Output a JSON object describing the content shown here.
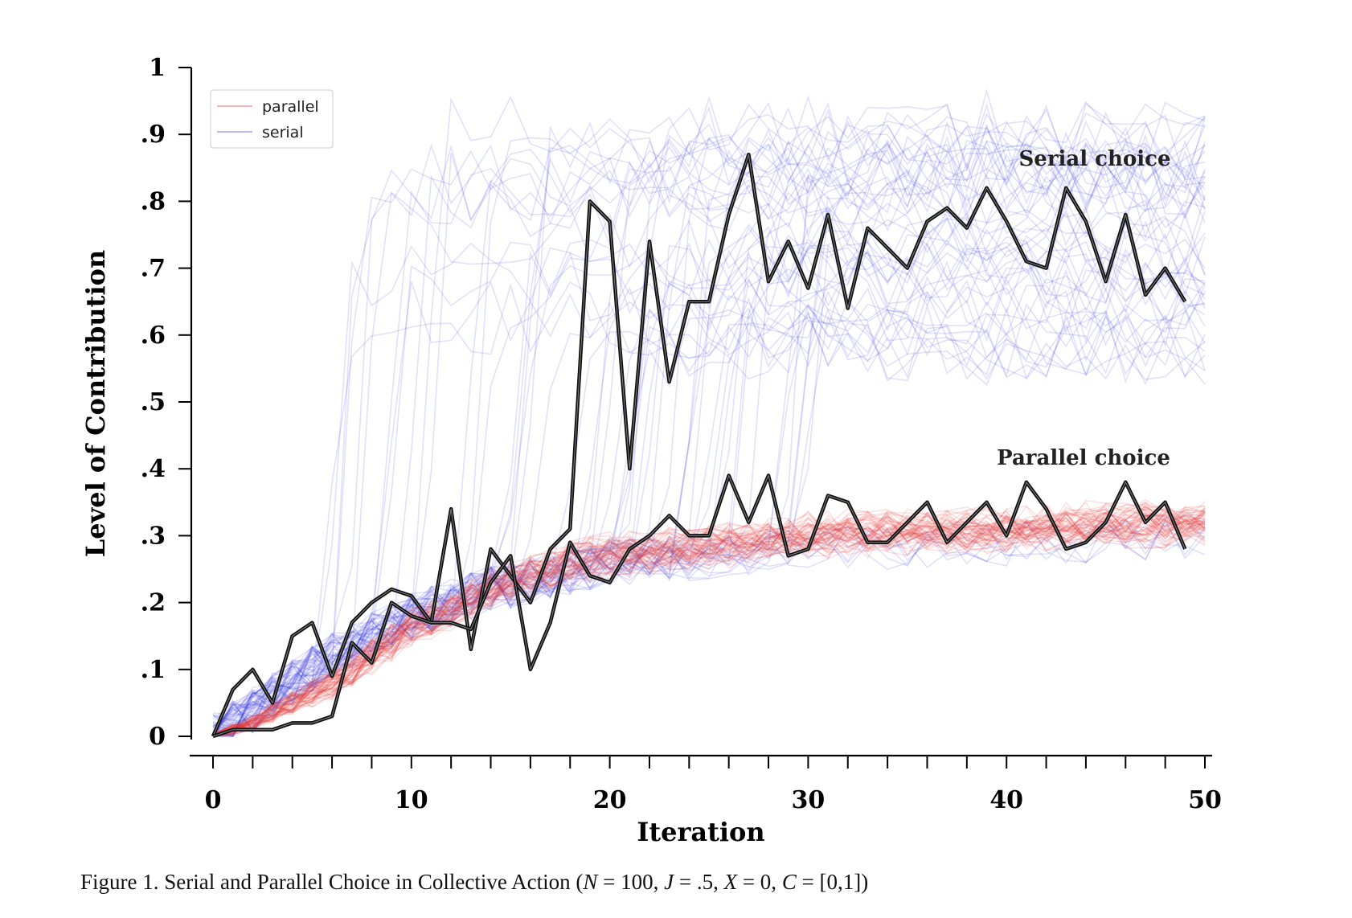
{
  "caption": {
    "prefix": "Figure 1.  Serial and Parallel Choice in Collective Action (",
    "n_label": "N",
    "n_value": " = 100, ",
    "j_label": "J",
    "j_value": " = .5, ",
    "x_label": "X",
    "x_value": " = 0, ",
    "c_label": "C",
    "c_value": " = [0,1])"
  },
  "chart_data": {
    "type": "line",
    "title": "",
    "xlabel": "Iteration",
    "ylabel": "Level of Contribution",
    "xlim": [
      0,
      50
    ],
    "ylim": [
      0,
      1
    ],
    "x_ticks": [
      0,
      10,
      20,
      30,
      40,
      50
    ],
    "x_tick_labels": [
      "0",
      "10",
      "20",
      "30",
      "40",
      "50"
    ],
    "x_minor_ticks": [
      0,
      2,
      4,
      6,
      8,
      10,
      12,
      14,
      16,
      18,
      20,
      22,
      24,
      26,
      28,
      30,
      32,
      34,
      36,
      38,
      40,
      42,
      44,
      46,
      48,
      50
    ],
    "y_ticks": [
      0,
      0.1,
      0.2,
      0.3,
      0.4,
      0.5,
      0.6,
      0.7,
      0.8,
      0.9,
      1
    ],
    "y_tick_labels": [
      "0",
      ".1",
      ".2",
      ".3",
      ".4",
      ".5",
      ".6",
      ".7",
      ".8",
      ".9",
      "1"
    ],
    "grid": false,
    "legend": {
      "placement": "top-left",
      "entries": [
        {
          "name": "parallel",
          "color": "#f08a8a"
        },
        {
          "name": "serial",
          "color": "#8f8ff2"
        }
      ]
    },
    "annotations": [
      {
        "text": "Serial choice",
        "x": 44.5,
        "y": 0.86
      },
      {
        "text": "Parallel choice",
        "x": 44.5,
        "y": 0.41
      }
    ],
    "series_colors": {
      "serial": "#2b2bd9",
      "parallel": "#e0312f",
      "highlight": "#111111"
    },
    "series_alpha": {
      "serial": 0.14,
      "parallel": 0.14
    },
    "ensembles": {
      "parallel": {
        "runs": 60,
        "mean_curve": [
          [
            0,
            0.0
          ],
          [
            2,
            0.02
          ],
          [
            4,
            0.05
          ],
          [
            6,
            0.08
          ],
          [
            8,
            0.12
          ],
          [
            10,
            0.16
          ],
          [
            12,
            0.19
          ],
          [
            14,
            0.22
          ],
          [
            16,
            0.24
          ],
          [
            18,
            0.26
          ],
          [
            20,
            0.27
          ],
          [
            24,
            0.28
          ],
          [
            30,
            0.3
          ],
          [
            40,
            0.31
          ],
          [
            50,
            0.32
          ]
        ],
        "spread": 0.06
      },
      "serial": {
        "runs": 60,
        "pre_level_curve": [
          [
            0,
            0.0
          ],
          [
            2,
            0.04
          ],
          [
            4,
            0.08
          ],
          [
            6,
            0.12
          ],
          [
            8,
            0.15
          ],
          [
            10,
            0.18
          ],
          [
            14,
            0.22
          ],
          [
            20,
            0.26
          ],
          [
            30,
            0.28
          ],
          [
            50,
            0.3
          ]
        ],
        "takeoff_range": [
          5,
          30
        ],
        "high_level_range": [
          0.58,
          0.92
        ]
      }
    },
    "series": [
      {
        "role": "serial-highlight",
        "x": [
          0,
          1,
          2,
          3,
          4,
          5,
          6,
          7,
          8,
          9,
          10,
          11,
          12,
          13,
          14,
          15,
          16,
          17,
          18,
          19,
          20,
          21,
          22,
          23,
          24,
          25,
          26,
          27,
          28,
          29,
          30,
          31,
          32,
          33,
          34,
          35,
          36,
          37,
          38,
          39,
          40,
          41,
          42,
          43,
          44,
          45,
          46,
          47,
          48,
          49
        ],
        "y": [
          0.0,
          0.07,
          0.1,
          0.05,
          0.15,
          0.17,
          0.09,
          0.17,
          0.2,
          0.22,
          0.21,
          0.17,
          0.34,
          0.13,
          0.28,
          0.24,
          0.2,
          0.28,
          0.31,
          0.8,
          0.77,
          0.4,
          0.74,
          0.53,
          0.65,
          0.65,
          0.78,
          0.87,
          0.68,
          0.74,
          0.67,
          0.78,
          0.64,
          0.76,
          0.73,
          0.7,
          0.77,
          0.79,
          0.76,
          0.82,
          0.77,
          0.71,
          0.7,
          0.82,
          0.77,
          0.68,
          0.78,
          0.66,
          0.7,
          0.65
        ]
      },
      {
        "role": "parallel-highlight",
        "x": [
          0,
          1,
          2,
          3,
          4,
          5,
          6,
          7,
          8,
          9,
          10,
          11,
          12,
          13,
          14,
          15,
          16,
          17,
          18,
          19,
          20,
          21,
          22,
          23,
          24,
          25,
          26,
          27,
          28,
          29,
          30,
          31,
          32,
          33,
          34,
          35,
          36,
          37,
          38,
          39,
          40,
          41,
          42,
          43,
          44,
          45,
          46,
          47,
          48,
          49
        ],
        "y": [
          0.0,
          0.01,
          0.01,
          0.01,
          0.02,
          0.02,
          0.03,
          0.14,
          0.11,
          0.2,
          0.18,
          0.17,
          0.17,
          0.16,
          0.23,
          0.27,
          0.1,
          0.17,
          0.29,
          0.24,
          0.23,
          0.28,
          0.3,
          0.33,
          0.3,
          0.3,
          0.39,
          0.32,
          0.39,
          0.27,
          0.28,
          0.36,
          0.35,
          0.29,
          0.29,
          0.32,
          0.35,
          0.29,
          0.32,
          0.35,
          0.3,
          0.38,
          0.34,
          0.28,
          0.29,
          0.32,
          0.38,
          0.32,
          0.35,
          0.28
        ]
      }
    ]
  }
}
